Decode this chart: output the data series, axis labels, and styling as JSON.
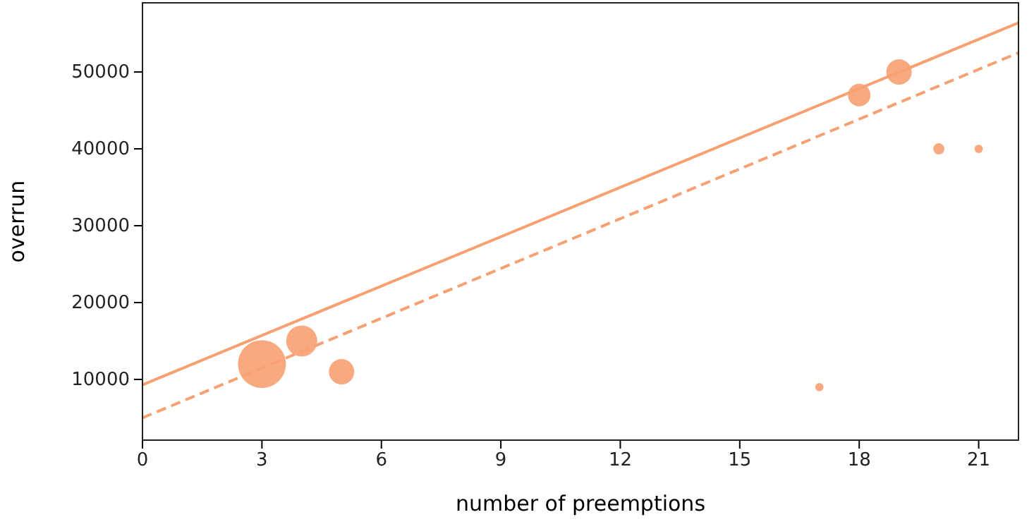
{
  "chart_data": {
    "type": "bubble",
    "xlabel": "number of preemptions",
    "ylabel": "overrun",
    "xlim": [
      0,
      22
    ],
    "ylim": [
      2100,
      59000
    ],
    "xticks": [
      0,
      3,
      6,
      9,
      12,
      15,
      18,
      21
    ],
    "yticks": [
      10000,
      20000,
      30000,
      40000,
      50000
    ],
    "grid": false,
    "series": [
      {
        "color": "#f7a072",
        "x": [
          3,
          4,
          5,
          17,
          18,
          19,
          20,
          21
        ],
        "values": [
          12000,
          15000,
          11000,
          9000,
          47000,
          50000,
          40000,
          40000
        ],
        "sizes": [
          1,
          0.42,
          0.28,
          0.03,
          0.22,
          0.28,
          0.055,
          0.03
        ]
      },
      {
        "type": "line",
        "color": "#f7a072",
        "line_style": "solid",
        "x": [
          0,
          22
        ],
        "values": [
          9300,
          56400
        ]
      },
      {
        "type": "line",
        "color": "#f7a072",
        "line_style": "dashed",
        "x": [
          0,
          22
        ],
        "values": [
          5000,
          52500
        ]
      }
    ]
  }
}
